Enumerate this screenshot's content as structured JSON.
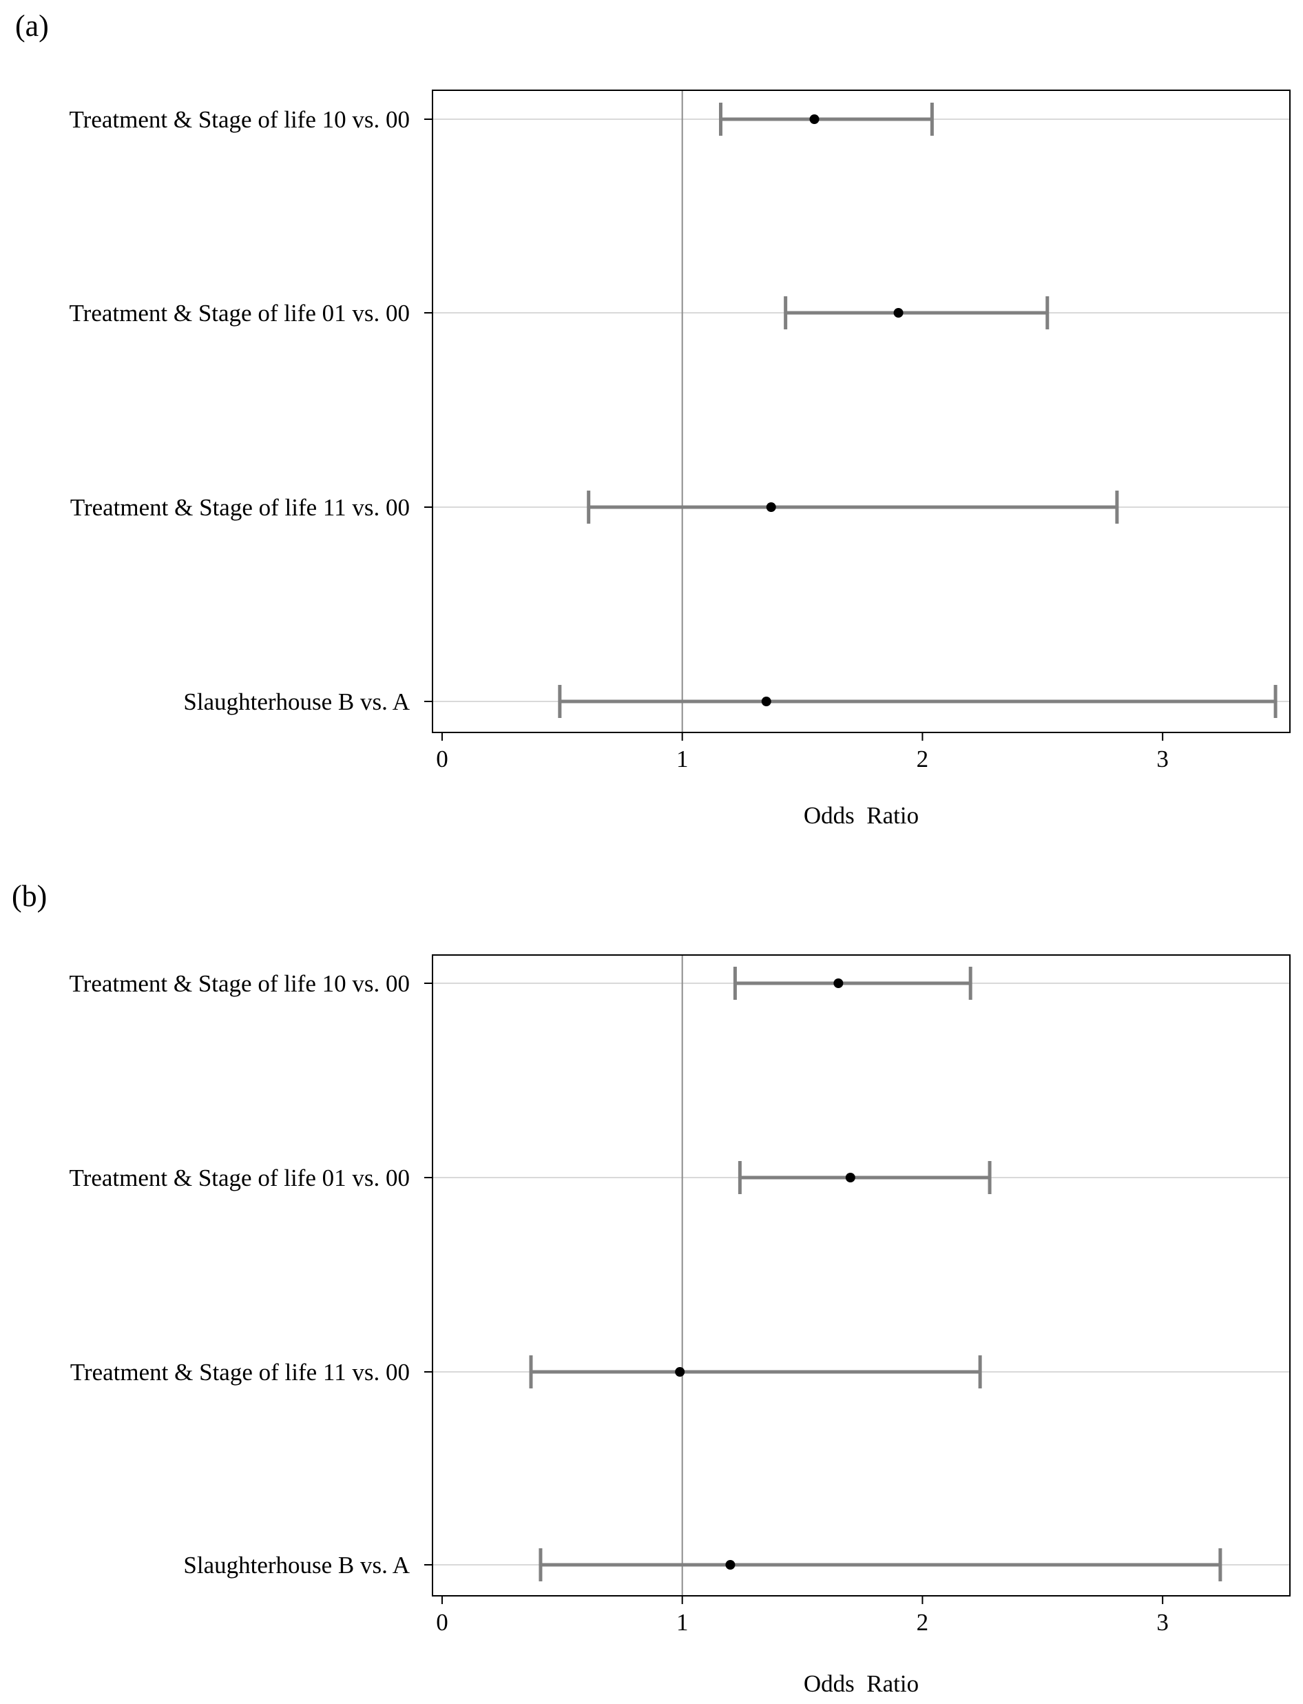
{
  "style": {
    "frame_color": "#000000",
    "grid_color": "#d9d9d9",
    "reference_line_color": "#8c8c8c",
    "error_bar_color": "#808080",
    "point_color": "#000000"
  },
  "chart_data": [
    {
      "type": "forest",
      "panel_label": "(a)",
      "categories": [
        "Treatment & Stage of life 10 vs. 00",
        "Treatment & Stage of life 01 vs. 00",
        "Treatment & Stage of life 11 vs. 00",
        "Slaughterhouse B vs. A"
      ],
      "estimates": [
        1.55,
        1.9,
        1.37,
        1.35
      ],
      "lower": [
        1.16,
        1.43,
        0.61,
        0.49
      ],
      "upper": [
        2.04,
        2.52,
        2.81,
        3.47
      ],
      "reference_line": 1,
      "xlabel": "Odds  Ratio",
      "xticks": [
        0,
        1,
        2,
        3
      ],
      "xlim": [
        -0.04,
        3.53
      ],
      "grid": true
    },
    {
      "type": "forest",
      "panel_label": "(b)",
      "categories": [
        "Treatment & Stage of life 10 vs. 00",
        "Treatment & Stage of life 01 vs. 00",
        "Treatment & Stage of life 11 vs. 00",
        "Slaughterhouse B vs. A"
      ],
      "estimates": [
        1.65,
        1.7,
        0.99,
        1.2
      ],
      "lower": [
        1.22,
        1.24,
        0.37,
        0.41
      ],
      "upper": [
        2.2,
        2.28,
        2.24,
        3.24
      ],
      "reference_line": 1,
      "xlabel": "Odds  Ratio",
      "xticks": [
        0,
        1,
        2,
        3
      ],
      "xlim": [
        -0.04,
        3.53
      ],
      "grid": true
    }
  ]
}
